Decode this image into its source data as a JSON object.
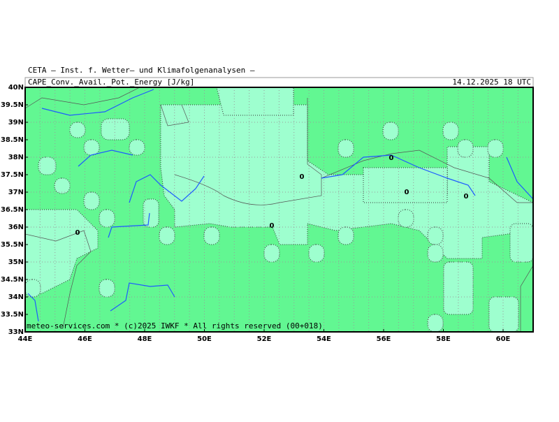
{
  "header": {
    "institute": "CETA — Inst. f. Wetter— und Klimafolgenanalysen —",
    "parameter": "CAPE_Conv._Avail._Pot._Energy [J/kg]",
    "valid_time": "14.12.2025 18 UTC"
  },
  "map": {
    "lat_labels": [
      "40N",
      "39.5N",
      "39N",
      "38.5N",
      "38N",
      "37.5N",
      "37N",
      "36.5N",
      "36N",
      "35.5N",
      "35N",
      "34.5N",
      "34N",
      "33.5N",
      "33N"
    ],
    "lon_labels": [
      "44E",
      "46E",
      "48E",
      "50E",
      "52E",
      "54E",
      "56E",
      "58E",
      "60E"
    ],
    "contour_labels": [
      "0",
      "0",
      "0",
      "0",
      "0",
      "0"
    ],
    "footer": "meteo-services.com * (c)2025 IWKF * All rights reserved (00+018)"
  }
}
